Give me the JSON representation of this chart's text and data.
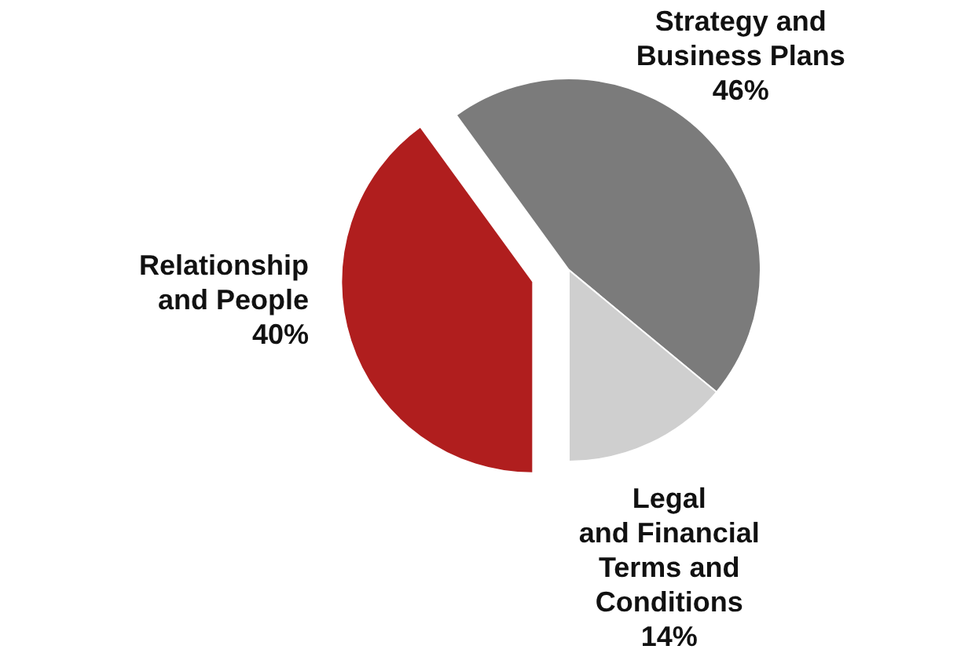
{
  "chart_data": {
    "type": "pie",
    "categories": [
      "Strategy and\nBusiness Plans",
      "Legal\nand Financial\nTerms and\nConditions",
      "Relationship\nand People"
    ],
    "values": [
      46,
      14,
      40
    ],
    "colors": [
      "#7b7b7b",
      "#cfcfcf",
      "#b01e1e"
    ],
    "value_labels": [
      "46%",
      "14%",
      "40%"
    ]
  }
}
